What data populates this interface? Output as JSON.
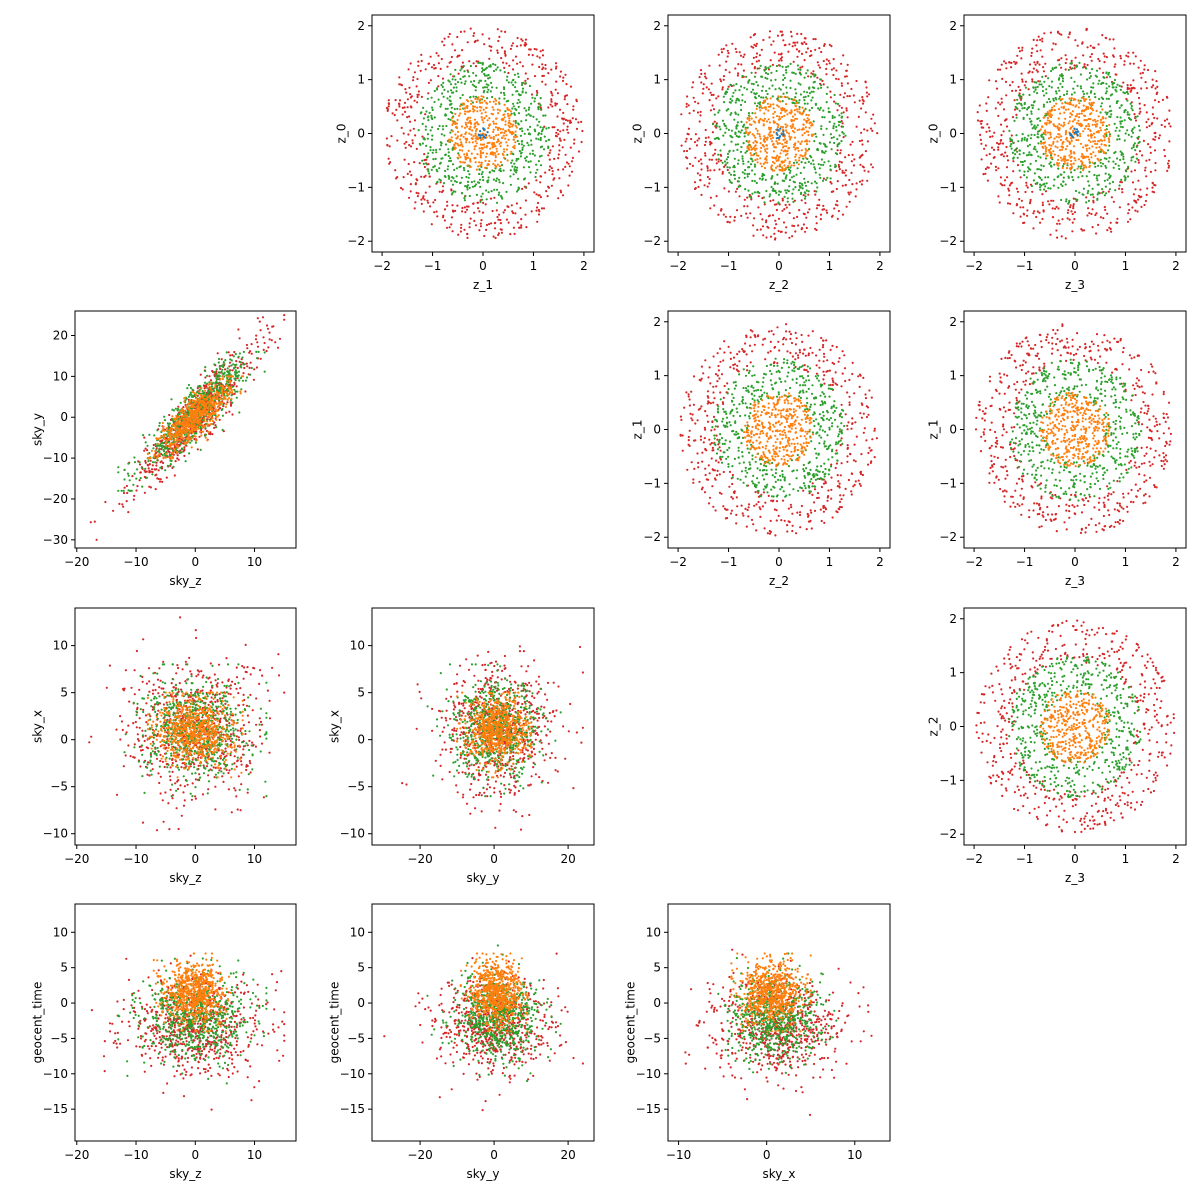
{
  "figure": {
    "background": "#ffffff",
    "point_colors": {
      "red": "#d62728",
      "green": "#2ca02c",
      "orange": "#ff7f0e",
      "blue": "#1f77b4"
    }
  },
  "chart_data": [
    {
      "type": "scatter",
      "panel": "z_1-vs-z_0",
      "xlabel": "z_1",
      "ylabel": "z_0",
      "xlim": [
        -2.2,
        2.2
      ],
      "ylim": [
        -2.2,
        2.2
      ],
      "xticks": [
        -2,
        -1,
        0,
        1,
        2
      ],
      "xticklabels": [
        "−2",
        "−1",
        "0",
        "1",
        "2"
      ],
      "yticks": [
        -2,
        -1,
        0,
        1,
        2
      ],
      "yticklabels": [
        "−2",
        "−1",
        "0",
        "1",
        "2"
      ],
      "grid": false,
      "series": [
        {
          "color": "#d62728",
          "kind": "ring",
          "x_center": 0,
          "y_center": 0,
          "r_inner": 1.2,
          "r_outer": 1.97
        },
        {
          "color": "#2ca02c",
          "kind": "ring",
          "x_center": 0,
          "y_center": 0,
          "r_inner": 0.6,
          "r_outer": 1.32
        },
        {
          "color": "#ff7f0e",
          "kind": "disk",
          "x_center": 0,
          "y_center": 0,
          "radius": 0.7
        },
        {
          "color": "#1f77b4",
          "kind": "disk",
          "x_center": 0,
          "y_center": 0,
          "radius": 0.1
        }
      ]
    },
    {
      "type": "scatter",
      "panel": "z_2-vs-z_0",
      "xlabel": "z_2",
      "ylabel": "z_0",
      "xlim": [
        -2.2,
        2.2
      ],
      "ylim": [
        -2.2,
        2.2
      ],
      "xticks": [
        -2,
        -1,
        0,
        1,
        2
      ],
      "xticklabels": [
        "−2",
        "−1",
        "0",
        "1",
        "2"
      ],
      "yticks": [
        -2,
        -1,
        0,
        1,
        2
      ],
      "yticklabels": [
        "−2",
        "−1",
        "0",
        "1",
        "2"
      ],
      "grid": false,
      "series": [
        {
          "color": "#d62728",
          "kind": "ring",
          "x_center": 0,
          "y_center": 0,
          "r_inner": 1.2,
          "r_outer": 1.97
        },
        {
          "color": "#2ca02c",
          "kind": "ring",
          "x_center": 0,
          "y_center": 0,
          "r_inner": 0.6,
          "r_outer": 1.32
        },
        {
          "color": "#ff7f0e",
          "kind": "disk",
          "x_center": 0,
          "y_center": 0,
          "radius": 0.7
        },
        {
          "color": "#1f77b4",
          "kind": "disk",
          "x_center": 0,
          "y_center": 0,
          "radius": 0.1
        }
      ]
    },
    {
      "type": "scatter",
      "panel": "z_3-vs-z_0",
      "xlabel": "z_3",
      "ylabel": "z_0",
      "xlim": [
        -2.2,
        2.2
      ],
      "ylim": [
        -2.2,
        2.2
      ],
      "xticks": [
        -2,
        -1,
        0,
        1,
        2
      ],
      "xticklabels": [
        "−2",
        "−1",
        "0",
        "1",
        "2"
      ],
      "yticks": [
        -2,
        -1,
        0,
        1,
        2
      ],
      "yticklabels": [
        "−2",
        "−1",
        "0",
        "1",
        "2"
      ],
      "grid": false,
      "series": [
        {
          "color": "#d62728",
          "kind": "ring",
          "x_center": 0,
          "y_center": 0,
          "r_inner": 1.2,
          "r_outer": 1.97
        },
        {
          "color": "#2ca02c",
          "kind": "ring",
          "x_center": 0,
          "y_center": 0,
          "r_inner": 0.6,
          "r_outer": 1.32
        },
        {
          "color": "#ff7f0e",
          "kind": "disk",
          "x_center": 0,
          "y_center": 0,
          "radius": 0.7
        },
        {
          "color": "#1f77b4",
          "kind": "disk",
          "x_center": 0,
          "y_center": 0,
          "radius": 0.1
        }
      ]
    },
    {
      "type": "scatter",
      "panel": "sky_z-vs-sky_y",
      "xlabel": "sky_z",
      "ylabel": "sky_y",
      "xlim": [
        -20.3,
        17.0
      ],
      "ylim": [
        -32.0,
        26.0
      ],
      "xticks": [
        -20,
        -10,
        0,
        10
      ],
      "xticklabels": [
        "−20",
        "−10",
        "0",
        "10"
      ],
      "yticks": [
        -30,
        -20,
        -10,
        0,
        10,
        20
      ],
      "yticklabels": [
        "−30",
        "−20",
        "−10",
        "0",
        "10",
        "20"
      ],
      "grid": false,
      "series": [
        {
          "color": "#d62728",
          "kind": "correlated",
          "x_center": 0,
          "y_center": 0,
          "x_sd": 5.5,
          "y_sd": 0,
          "slope": 1.55,
          "resid_sd": 3.5,
          "x_range": [
            -18,
            15
          ],
          "y_range": [
            -30,
            25
          ]
        },
        {
          "color": "#2ca02c",
          "kind": "correlated",
          "x_center": 0,
          "y_center": 1,
          "x_sd": 4.5,
          "y_sd": 0,
          "slope": 1.4,
          "resid_sd": 3.0,
          "x_range": [
            -13,
            12
          ],
          "y_range": [
            -18,
            16
          ]
        },
        {
          "color": "#ff7f0e",
          "kind": "correlated",
          "x_center": 0,
          "y_center": 0,
          "x_sd": 3.0,
          "y_sd": 0,
          "slope": 1.2,
          "resid_sd": 2.5,
          "x_range": [
            -8,
            8
          ],
          "y_range": [
            -10,
            10
          ]
        }
      ]
    },
    {
      "type": "scatter",
      "panel": "z_2-vs-z_1",
      "xlabel": "z_2",
      "ylabel": "z_1",
      "xlim": [
        -2.2,
        2.2
      ],
      "ylim": [
        -2.2,
        2.2
      ],
      "xticks": [
        -2,
        -1,
        0,
        1,
        2
      ],
      "xticklabels": [
        "−2",
        "−1",
        "0",
        "1",
        "2"
      ],
      "yticks": [
        -2,
        -1,
        0,
        1,
        2
      ],
      "yticklabels": [
        "−2",
        "−1",
        "0",
        "1",
        "2"
      ],
      "grid": false,
      "series": [
        {
          "color": "#d62728",
          "kind": "ring",
          "x_center": 0,
          "y_center": 0,
          "r_inner": 1.2,
          "r_outer": 1.97
        },
        {
          "color": "#2ca02c",
          "kind": "ring",
          "x_center": 0,
          "y_center": 0,
          "r_inner": 0.6,
          "r_outer": 1.32
        },
        {
          "color": "#ff7f0e",
          "kind": "disk",
          "x_center": 0,
          "y_center": 0,
          "radius": 0.7
        }
      ]
    },
    {
      "type": "scatter",
      "panel": "z_3-vs-z_1",
      "xlabel": "z_3",
      "ylabel": "z_1",
      "xlim": [
        -2.2,
        2.2
      ],
      "ylim": [
        -2.2,
        2.2
      ],
      "xticks": [
        -2,
        -1,
        0,
        1,
        2
      ],
      "xticklabels": [
        "−2",
        "−1",
        "0",
        "1",
        "2"
      ],
      "yticks": [
        -2,
        -1,
        0,
        1,
        2
      ],
      "yticklabels": [
        "−2",
        "−1",
        "0",
        "1",
        "2"
      ],
      "grid": false,
      "series": [
        {
          "color": "#d62728",
          "kind": "ring",
          "x_center": 0,
          "y_center": 0,
          "r_inner": 1.2,
          "r_outer": 1.97
        },
        {
          "color": "#2ca02c",
          "kind": "ring",
          "x_center": 0,
          "y_center": 0,
          "r_inner": 0.6,
          "r_outer": 1.32
        },
        {
          "color": "#ff7f0e",
          "kind": "disk",
          "x_center": 0,
          "y_center": 0,
          "radius": 0.7
        }
      ]
    },
    {
      "type": "scatter",
      "panel": "sky_z-vs-sky_x",
      "xlabel": "sky_z",
      "ylabel": "sky_x",
      "xlim": [
        -20.3,
        17.0
      ],
      "ylim": [
        -11.2,
        14.0
      ],
      "xticks": [
        -20,
        -10,
        0,
        10
      ],
      "xticklabels": [
        "−20",
        "−10",
        "0",
        "10"
      ],
      "yticks": [
        -10,
        -5,
        0,
        5,
        10
      ],
      "yticklabels": [
        "−10",
        "−5",
        "0",
        "5",
        "10"
      ],
      "grid": false,
      "series": [
        {
          "color": "#d62728",
          "kind": "gaussian",
          "x_center": 0,
          "y_center": 1,
          "x_sd": 6,
          "y_sd": 3.8,
          "x_range": [
            -18,
            15
          ],
          "y_range": [
            -10,
            13
          ]
        },
        {
          "color": "#2ca02c",
          "kind": "gaussian",
          "x_center": 0,
          "y_center": 1,
          "x_sd": 4.5,
          "y_sd": 2.6,
          "x_range": [
            -13,
            12
          ],
          "y_range": [
            -6,
            8
          ]
        },
        {
          "color": "#ff7f0e",
          "kind": "gaussian",
          "x_center": 0,
          "y_center": 1,
          "x_sd": 3.2,
          "y_sd": 1.8,
          "x_range": [
            -8,
            8
          ],
          "y_range": [
            -4,
            5
          ]
        }
      ]
    },
    {
      "type": "scatter",
      "panel": "sky_y-vs-sky_x",
      "xlabel": "sky_y",
      "ylabel": "sky_x",
      "xlim": [
        -33.0,
        27.0
      ],
      "ylim": [
        -11.2,
        14.0
      ],
      "xticks": [
        -20,
        0,
        20
      ],
      "xticklabels": [
        "−20",
        "0",
        "20"
      ],
      "yticks": [
        -10,
        -5,
        0,
        5,
        10
      ],
      "yticklabels": [
        "−10",
        "−5",
        "0",
        "5",
        "10"
      ],
      "grid": false,
      "series": [
        {
          "color": "#d62728",
          "kind": "gaussian",
          "x_center": 1,
          "y_center": 1,
          "x_sd": 8,
          "y_sd": 3.6,
          "x_range": [
            -30,
            24
          ],
          "y_range": [
            -10,
            13
          ]
        },
        {
          "color": "#2ca02c",
          "kind": "gaussian",
          "x_center": 1,
          "y_center": 1,
          "x_sd": 6,
          "y_sd": 2.5,
          "x_range": [
            -18,
            18
          ],
          "y_range": [
            -6,
            8
          ]
        },
        {
          "color": "#ff7f0e",
          "kind": "gaussian",
          "x_center": 1,
          "y_center": 1,
          "x_sd": 4,
          "y_sd": 1.8,
          "x_range": [
            -10,
            10
          ],
          "y_range": [
            -4,
            5
          ]
        }
      ]
    },
    {
      "type": "scatter",
      "panel": "z_3-vs-z_2",
      "xlabel": "z_3",
      "ylabel": "z_2",
      "xlim": [
        -2.2,
        2.2
      ],
      "ylim": [
        -2.2,
        2.2
      ],
      "xticks": [
        -2,
        -1,
        0,
        1,
        2
      ],
      "xticklabels": [
        "−2",
        "−1",
        "0",
        "1",
        "2"
      ],
      "yticks": [
        -2,
        -1,
        0,
        1,
        2
      ],
      "yticklabels": [
        "−2",
        "−1",
        "0",
        "1",
        "2"
      ],
      "grid": false,
      "series": [
        {
          "color": "#d62728",
          "kind": "ring",
          "x_center": 0,
          "y_center": 0,
          "r_inner": 1.2,
          "r_outer": 1.97
        },
        {
          "color": "#2ca02c",
          "kind": "ring",
          "x_center": 0,
          "y_center": 0,
          "r_inner": 0.6,
          "r_outer": 1.32
        },
        {
          "color": "#ff7f0e",
          "kind": "disk",
          "x_center": 0,
          "y_center": 0,
          "radius": 0.7
        }
      ]
    },
    {
      "type": "scatter",
      "panel": "sky_z-vs-geocent_time",
      "xlabel": "sky_z",
      "ylabel": "geocent_time",
      "xlim": [
        -20.3,
        17.0
      ],
      "ylim": [
        -19.5,
        14.0
      ],
      "xticks": [
        -20,
        -10,
        0,
        10
      ],
      "xticklabels": [
        "−20",
        "−10",
        "0",
        "10"
      ],
      "yticks": [
        -15,
        -10,
        -5,
        0,
        5,
        10
      ],
      "yticklabels": [
        "−15",
        "−10",
        "−5",
        "0",
        "5",
        "10"
      ],
      "grid": false,
      "series": [
        {
          "color": "#d62728",
          "kind": "gaussian",
          "x_center": 0,
          "y_center": -3.5,
          "x_sd": 6,
          "y_sd": 3.4,
          "x_range": [
            -18,
            15
          ],
          "y_range": [
            -18,
            12.5
          ]
        },
        {
          "color": "#2ca02c",
          "kind": "gaussian",
          "x_center": 0,
          "y_center": -2,
          "x_sd": 4.5,
          "y_sd": 3.0,
          "x_range": [
            -13,
            12
          ],
          "y_range": [
            -12,
            10
          ]
        },
        {
          "color": "#ff7f0e",
          "kind": "gaussian",
          "x_center": 0,
          "y_center": 1.5,
          "x_sd": 2.5,
          "y_sd": 2.2,
          "x_range": [
            -7,
            7
          ],
          "y_range": [
            -4,
            7
          ]
        }
      ]
    },
    {
      "type": "scatter",
      "panel": "sky_y-vs-geocent_time",
      "xlabel": "sky_y",
      "ylabel": "geocent_time",
      "xlim": [
        -33.0,
        27.0
      ],
      "ylim": [
        -19.5,
        14.0
      ],
      "xticks": [
        -20,
        0,
        20
      ],
      "xticklabels": [
        "−20",
        "0",
        "20"
      ],
      "yticks": [
        -15,
        -10,
        -5,
        0,
        5,
        10
      ],
      "yticklabels": [
        "−15",
        "−10",
        "−5",
        "0",
        "5",
        "10"
      ],
      "grid": false,
      "series": [
        {
          "color": "#d62728",
          "kind": "gaussian",
          "x_center": 0,
          "y_center": -3.5,
          "x_sd": 8,
          "y_sd": 3.4,
          "x_range": [
            -30,
            24
          ],
          "y_range": [
            -18,
            12.5
          ]
        },
        {
          "color": "#2ca02c",
          "kind": "gaussian",
          "x_center": 1,
          "y_center": -2,
          "x_sd": 6,
          "y_sd": 3.0,
          "x_range": [
            -18,
            18
          ],
          "y_range": [
            -12,
            10
          ]
        },
        {
          "color": "#ff7f0e",
          "kind": "gaussian",
          "x_center": 1,
          "y_center": 1.5,
          "x_sd": 3.5,
          "y_sd": 2.2,
          "x_range": [
            -9,
            9
          ],
          "y_range": [
            -4,
            7
          ]
        }
      ]
    },
    {
      "type": "scatter",
      "panel": "sky_x-vs-geocent_time",
      "xlabel": "sky_x",
      "ylabel": "geocent_time",
      "xlim": [
        -11.2,
        14.0
      ],
      "ylim": [
        -19.5,
        14.0
      ],
      "xticks": [
        -10,
        0,
        10
      ],
      "xticklabels": [
        "−10",
        "0",
        "10"
      ],
      "yticks": [
        -15,
        -10,
        -5,
        0,
        5,
        10
      ],
      "yticklabels": [
        "−15",
        "−10",
        "−5",
        "0",
        "5",
        "10"
      ],
      "grid": false,
      "series": [
        {
          "color": "#d62728",
          "kind": "gaussian",
          "x_center": 1,
          "y_center": -3.5,
          "x_sd": 3.8,
          "y_sd": 3.4,
          "x_range": [
            -10,
            13
          ],
          "y_range": [
            -18,
            12.5
          ]
        },
        {
          "color": "#2ca02c",
          "kind": "gaussian",
          "x_center": 1,
          "y_center": -2,
          "x_sd": 2.6,
          "y_sd": 3.0,
          "x_range": [
            -6,
            8
          ],
          "y_range": [
            -12,
            10
          ]
        },
        {
          "color": "#ff7f0e",
          "kind": "gaussian",
          "x_center": 0.5,
          "y_center": 1.5,
          "x_sd": 1.8,
          "y_sd": 2.2,
          "x_range": [
            -4,
            5
          ],
          "y_range": [
            -4,
            7
          ]
        }
      ]
    }
  ]
}
